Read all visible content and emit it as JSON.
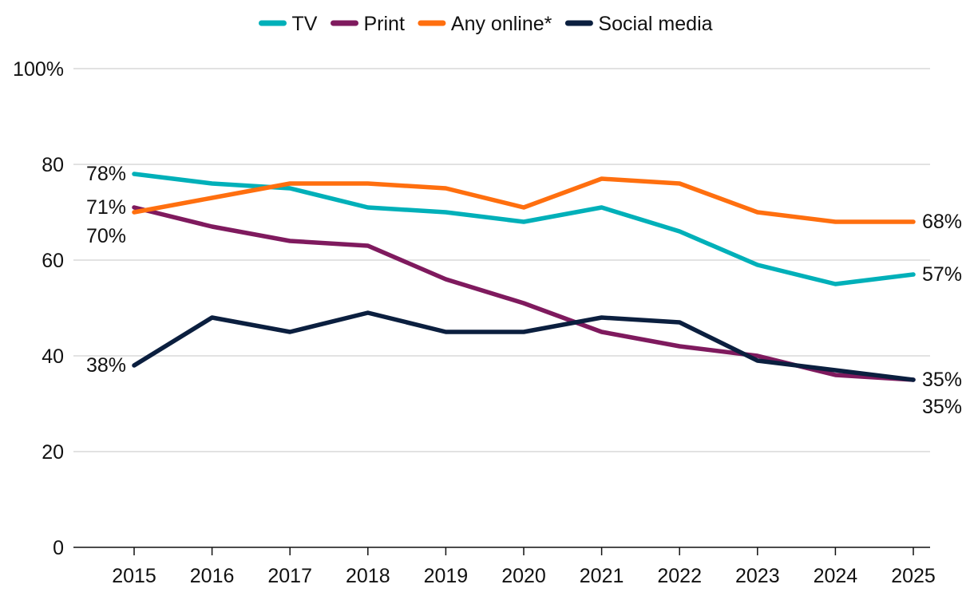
{
  "chart_data": {
    "type": "line",
    "title": "",
    "xlabel": "",
    "ylabel": "",
    "ylim": [
      0,
      100
    ],
    "ytick_values": [
      0,
      20,
      40,
      60,
      80,
      100
    ],
    "ytick_labels": [
      "0",
      "20",
      "40",
      "60",
      "80",
      "100%"
    ],
    "grid": true,
    "legend_position": "top-center",
    "categories": [
      "2015",
      "2016",
      "2017",
      "2018",
      "2019",
      "2020",
      "2021",
      "2022",
      "2023",
      "2024",
      "2025"
    ],
    "series": [
      {
        "name": "TV",
        "color": "#00B0B9",
        "values": [
          78,
          76,
          75,
          71,
          70,
          68,
          71,
          66,
          59,
          55,
          57
        ],
        "start_label": "78%",
        "end_label": "57%"
      },
      {
        "name": "Print",
        "color": "#7F1A5E",
        "values": [
          71,
          67,
          64,
          63,
          56,
          51,
          45,
          42,
          40,
          36,
          35
        ],
        "start_label": "71%",
        "end_label": "35%"
      },
      {
        "name": "Any online*",
        "color": "#FF6F0F",
        "values": [
          70,
          73,
          76,
          76,
          75,
          71,
          77,
          76,
          70,
          68,
          68
        ],
        "start_label": "70%",
        "end_label": "68%"
      },
      {
        "name": "Social media",
        "color": "#0B1F3F",
        "values": [
          38,
          48,
          45,
          49,
          45,
          45,
          48,
          47,
          39,
          37,
          35
        ],
        "start_label": "38%",
        "end_label": "35%"
      }
    ]
  }
}
